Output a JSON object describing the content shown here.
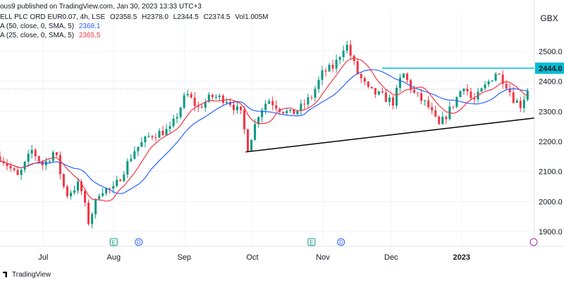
{
  "header": {
    "published": "ous9 published on TradingView.com, Jan 30, 2023 13:33 UTC+3",
    "symbol": "ELL PLC ORD EUR0.07, 4h, LSE",
    "open": "O2358.5",
    "high": "H2378.0",
    "low": "L2344.5",
    "close": "C2374.5",
    "volume": "Vol1.005M"
  },
  "indicators": [
    {
      "label": "A (50, close, 0, SMA, 5)",
      "value": "2368.1",
      "color": "#2962ff"
    },
    {
      "label": "A (25, close, 0, SMA, 5)",
      "value": "2365.5",
      "color": "#f23645"
    }
  ],
  "brand": "TradingView",
  "colors": {
    "up": "#089981",
    "down": "#f23645",
    "ma50": "#2962ff",
    "ma25": "#f23645",
    "resistance": "#00bcd4",
    "support": "#000000",
    "grid": "#f0f3fa",
    "axis_text": "#131722"
  },
  "chart_data": {
    "type": "candlestick",
    "currency": "GBX",
    "ylim": [
      1880,
      2580
    ],
    "y_ticks": [
      1900,
      2000,
      2100,
      2200,
      2300,
      2400,
      2500
    ],
    "y_tick_labels": [
      "1900.0",
      "2000.0",
      "2100.0",
      "2200.0",
      "2300.0",
      "2400.0",
      "2500.0"
    ],
    "x_labels": [
      {
        "label": "Jul",
        "date": "2022-07-01"
      },
      {
        "label": "Aug",
        "date": "2022-08-01"
      },
      {
        "label": "Sep",
        "date": "2022-09-01"
      },
      {
        "label": "Oct",
        "date": "2022-10-01"
      },
      {
        "label": "Nov",
        "date": "2022-11-01"
      },
      {
        "label": "Dec",
        "date": "2022-12-01"
      },
      {
        "label": "2023",
        "date": "2023-01-01"
      }
    ],
    "x_range": [
      "2022-06-12",
      "2023-02-02"
    ],
    "price_anchors": [
      [
        "2022-06-12",
        2150
      ],
      [
        "2022-06-20",
        2080
      ],
      [
        "2022-06-26",
        2170
      ],
      [
        "2022-07-01",
        2120
      ],
      [
        "2022-07-06",
        2170
      ],
      [
        "2022-07-11",
        2020
      ],
      [
        "2022-07-17",
        2060
      ],
      [
        "2022-07-21",
        1930
      ],
      [
        "2022-07-26",
        2040
      ],
      [
        "2022-08-01",
        2040
      ],
      [
        "2022-08-10",
        2170
      ],
      [
        "2022-08-17",
        2220
      ],
      [
        "2022-08-26",
        2240
      ],
      [
        "2022-09-02",
        2360
      ],
      [
        "2022-09-07",
        2310
      ],
      [
        "2022-09-13",
        2350
      ],
      [
        "2022-09-20",
        2340
      ],
      [
        "2022-09-26",
        2290
      ],
      [
        "2022-09-29",
        2180
      ],
      [
        "2022-10-04",
        2300
      ],
      [
        "2022-10-08",
        2340
      ],
      [
        "2022-10-13",
        2310
      ],
      [
        "2022-10-18",
        2290
      ],
      [
        "2022-10-22",
        2310
      ],
      [
        "2022-10-27",
        2350
      ],
      [
        "2022-11-01",
        2430
      ],
      [
        "2022-11-06",
        2450
      ],
      [
        "2022-11-11",
        2530
      ],
      [
        "2022-11-16",
        2430
      ],
      [
        "2022-11-21",
        2370
      ],
      [
        "2022-11-27",
        2350
      ],
      [
        "2022-12-02",
        2330
      ],
      [
        "2022-12-06",
        2430
      ],
      [
        "2022-12-11",
        2360
      ],
      [
        "2022-12-17",
        2320
      ],
      [
        "2022-12-22",
        2250
      ],
      [
        "2022-12-28",
        2320
      ],
      [
        "2023-01-02",
        2390
      ],
      [
        "2023-01-06",
        2330
      ],
      [
        "2023-01-11",
        2380
      ],
      [
        "2023-01-16",
        2430
      ],
      [
        "2023-01-20",
        2400
      ],
      [
        "2023-01-24",
        2340
      ],
      [
        "2023-01-27",
        2320
      ],
      [
        "2023-01-30",
        2374.5
      ]
    ],
    "candle_count": 150,
    "series": [
      {
        "name": "MA (50, close, 0, SMA, 5)",
        "type": "line",
        "period": 50,
        "value_last": 2368.1
      },
      {
        "name": "MA (25, close, 0, SMA, 5)",
        "type": "line",
        "period": 25,
        "value_last": 2365.5
      }
    ],
    "horizontal_line": {
      "y": 2444.0,
      "label": "2444.0",
      "from": "2022-11-27"
    },
    "trendline": {
      "from": [
        "2022-09-28",
        2165
      ],
      "to": [
        "2023-02-02",
        2278
      ]
    },
    "events": [
      {
        "date": "2022-08-01",
        "label": "E"
      },
      {
        "date": "2022-08-12",
        "label": "D"
      },
      {
        "date": "2022-10-27",
        "label": "E"
      },
      {
        "date": "2022-11-09",
        "label": "D"
      }
    ],
    "current_price_line": 2374.5
  }
}
